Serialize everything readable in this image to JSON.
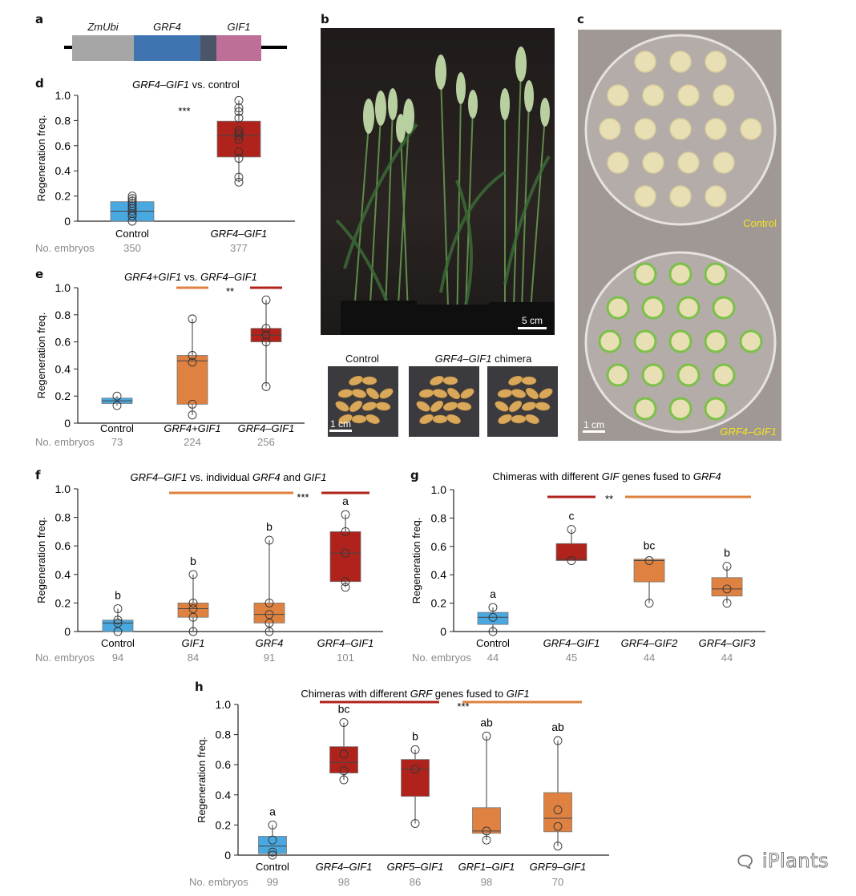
{
  "panels": {
    "a": {
      "letter": "a",
      "segments": [
        {
          "label": "ZmUbi",
          "color": "#a6a6a6"
        },
        {
          "label": "GRF4",
          "color": "#3f74b0"
        },
        {
          "label": "",
          "color": "#4a5568"
        },
        {
          "label": "GIF1",
          "color": "#bd6f98"
        }
      ]
    },
    "b": {
      "letter": "b",
      "scale_bar": "5 cm",
      "seed_labels": {
        "control": "Control",
        "chimera_gene": "GRF4–GIF1",
        "chimera_suffix": " chimera"
      },
      "seed_scale_bar": "1 cm"
    },
    "c": {
      "letter": "c",
      "control_label": "Control",
      "treatment_label": "GRF4–GIF1",
      "scale_bar": "1 cm",
      "label_color": "#f2e21c"
    },
    "watermark": "iPlants"
  },
  "colors": {
    "control": "#4aa8e0",
    "chimera": "#b0231c",
    "other": "#df8140"
  },
  "chart_data": [
    {
      "id": "d",
      "letter": "d",
      "type": "box",
      "title_parts": [
        {
          "t": "GRF4–GIF1",
          "i": true
        },
        {
          "t": " vs. control",
          "i": false
        }
      ],
      "ylabel": "Regeneration freq.",
      "ylim": [
        0,
        1.0
      ],
      "yticks": [
        "0",
        "0.2",
        "0.4",
        "0.6",
        "0.8",
        "1.0"
      ],
      "count_label": "No. embryos",
      "significance": "***",
      "groups": [
        {
          "name": "Control",
          "italic": false,
          "color": "control",
          "n": "350",
          "q1": 0.0,
          "median": 0.08,
          "q3": 0.155,
          "min": 0.0,
          "max": 0.2,
          "points": [
            0.0,
            0.04,
            0.06,
            0.08,
            0.1,
            0.12,
            0.14,
            0.16,
            0.18,
            0.2
          ]
        },
        {
          "name": "GRF4–GIF1",
          "italic": true,
          "color": "chimera",
          "n": "377",
          "q1": 0.51,
          "median": 0.68,
          "q3": 0.795,
          "min": 0.31,
          "max": 0.96,
          "points": [
            0.31,
            0.35,
            0.5,
            0.55,
            0.65,
            0.68,
            0.7,
            0.72,
            0.82,
            0.87,
            0.9,
            0.96
          ]
        }
      ],
      "bars": []
    },
    {
      "id": "e",
      "letter": "e",
      "type": "box",
      "title_parts": [
        {
          "t": "GRF4+GIF1",
          "i": true
        },
        {
          "t": " vs. ",
          "i": false
        },
        {
          "t": "GRF4–GIF1",
          "i": true
        }
      ],
      "ylabel": "Regeneration freq.",
      "ylim": [
        0,
        1.0
      ],
      "yticks": [
        "0",
        "0.2",
        "0.4",
        "0.6",
        "0.8",
        "1.0"
      ],
      "count_label": "No. embryos",
      "significance": "**",
      "groups": [
        {
          "name": "Control",
          "italic": false,
          "color": "control",
          "n": "73",
          "q1": 0.145,
          "median": 0.165,
          "q3": 0.185,
          "min": 0.13,
          "max": 0.2,
          "points": [
            0.13,
            0.2
          ]
        },
        {
          "name": "GRF4+GIF1",
          "italic": true,
          "color": "other",
          "n": "224",
          "q1": 0.14,
          "median": 0.46,
          "q3": 0.5,
          "min": 0.06,
          "max": 0.77,
          "points": [
            0.06,
            0.14,
            0.45,
            0.5,
            0.77
          ]
        },
        {
          "name": "GRF4–GIF1",
          "italic": true,
          "color": "chimera",
          "n": "256",
          "q1": 0.6,
          "median": 0.65,
          "q3": 0.7,
          "min": 0.27,
          "max": 0.91,
          "points": [
            0.27,
            0.6,
            0.65,
            0.7,
            0.91
          ]
        }
      ],
      "bars": [
        {
          "from": 1,
          "to": 1,
          "color": "other"
        },
        {
          "from": 2,
          "to": 2,
          "color": "chimera"
        }
      ]
    },
    {
      "id": "f",
      "letter": "f",
      "type": "box",
      "title_parts": [
        {
          "t": "GRF4–GIF1",
          "i": true
        },
        {
          "t": " vs. individual ",
          "i": false
        },
        {
          "t": "GRF4",
          "i": true
        },
        {
          "t": " and ",
          "i": false
        },
        {
          "t": "GIF1",
          "i": true
        }
      ],
      "ylabel": "Regeneration freq.",
      "ylim": [
        0,
        1.0
      ],
      "yticks": [
        "0",
        "0.2",
        "0.4",
        "0.6",
        "0.8",
        "1.0"
      ],
      "count_label": "No. embryos",
      "significance": "***",
      "groups": [
        {
          "name": "Control",
          "italic": false,
          "color": "control",
          "n": "94",
          "letter": "b",
          "q1": 0.0,
          "median": 0.06,
          "q3": 0.08,
          "min": 0.0,
          "max": 0.16,
          "points": [
            0.0,
            0.06,
            0.08,
            0.16
          ]
        },
        {
          "name": "GIF1",
          "italic": true,
          "color": "other",
          "n": "84",
          "letter": "b",
          "q1": 0.1,
          "median": 0.16,
          "q3": 0.2,
          "min": 0.0,
          "max": 0.4,
          "points": [
            0.0,
            0.1,
            0.16,
            0.2,
            0.4
          ]
        },
        {
          "name": "GRF4",
          "italic": true,
          "color": "other",
          "n": "91",
          "letter": "b",
          "q1": 0.06,
          "median": 0.12,
          "q3": 0.2,
          "min": 0.0,
          "max": 0.64,
          "points": [
            0.0,
            0.06,
            0.12,
            0.2,
            0.64
          ]
        },
        {
          "name": "GRF4–GIF1",
          "italic": true,
          "color": "chimera",
          "n": "101",
          "letter": "a",
          "q1": 0.35,
          "median": 0.55,
          "q3": 0.7,
          "min": 0.31,
          "max": 0.82,
          "points": [
            0.31,
            0.35,
            0.55,
            0.7,
            0.82
          ]
        }
      ],
      "bars": [
        {
          "from": 1,
          "to": 2,
          "color": "other"
        },
        {
          "from": 3,
          "to": 3,
          "color": "chimera"
        }
      ]
    },
    {
      "id": "g",
      "letter": "g",
      "type": "box",
      "title_parts": [
        {
          "t": "Chimeras with different ",
          "i": false
        },
        {
          "t": "GIF",
          "i": true
        },
        {
          "t": " genes fused to ",
          "i": false
        },
        {
          "t": "GRF4",
          "i": true
        }
      ],
      "ylabel": "Regeneration freq.",
      "ylim": [
        0,
        1.0
      ],
      "yticks": [
        "0",
        "0.2",
        "0.4",
        "0.6",
        "0.8",
        "1.0"
      ],
      "count_label": "No. embryos",
      "significance": "**",
      "groups": [
        {
          "name": "Control",
          "italic": false,
          "color": "control",
          "n": "44",
          "letter": "a",
          "q1": 0.05,
          "median": 0.1,
          "q3": 0.135,
          "min": 0.0,
          "max": 0.17,
          "points": [
            0.0,
            0.1,
            0.17
          ]
        },
        {
          "name": "GRF4–GIF1",
          "italic": true,
          "color": "chimera",
          "n": "45",
          "letter": "c",
          "q1": 0.5,
          "median": 0.51,
          "q3": 0.62,
          "min": 0.5,
          "max": 0.72,
          "points": [
            0.5,
            0.72
          ]
        },
        {
          "name": "GRF4–GIF2",
          "italic": true,
          "color": "other",
          "n": "44",
          "letter": "bc",
          "q1": 0.35,
          "median": 0.5,
          "q3": 0.51,
          "min": 0.2,
          "max": 0.51,
          "points": [
            0.2,
            0.5
          ]
        },
        {
          "name": "GRF4–GIF3",
          "italic": true,
          "color": "other",
          "n": "44",
          "letter": "b",
          "q1": 0.25,
          "median": 0.3,
          "q3": 0.38,
          "min": 0.2,
          "max": 0.46,
          "points": [
            0.2,
            0.3,
            0.46
          ]
        }
      ],
      "bars": [
        {
          "from": 1,
          "to": 1,
          "color": "chimera"
        },
        {
          "from": 2,
          "to": 3,
          "color": "other"
        }
      ]
    },
    {
      "id": "h",
      "letter": "h",
      "type": "box",
      "title_parts": [
        {
          "t": "Chimeras with different ",
          "i": false
        },
        {
          "t": "GRF",
          "i": true
        },
        {
          "t": " genes fused to ",
          "i": false
        },
        {
          "t": "GIF1",
          "i": true
        }
      ],
      "ylabel": "Regeneration freq.",
      "ylim": [
        0,
        1.0
      ],
      "yticks": [
        "0",
        "0.2",
        "0.4",
        "0.6",
        "0.8",
        "1.0"
      ],
      "count_label": "No. embryos",
      "significance": "***",
      "groups": [
        {
          "name": "Control",
          "italic": false,
          "color": "control",
          "n": "99",
          "letter": "a",
          "q1": 0.01,
          "median": 0.06,
          "q3": 0.125,
          "min": 0.0,
          "max": 0.2,
          "points": [
            0.0,
            0.02,
            0.1,
            0.2
          ]
        },
        {
          "name": "GRF4–GIF1",
          "italic": true,
          "color": "chimera",
          "n": "98",
          "letter": "bc",
          "q1": 0.545,
          "median": 0.615,
          "q3": 0.72,
          "min": 0.5,
          "max": 0.88,
          "points": [
            0.5,
            0.56,
            0.67,
            0.88
          ]
        },
        {
          "name": "GRF5–GIF1",
          "italic": true,
          "color": "chimera",
          "n": "86",
          "letter": "b",
          "q1": 0.39,
          "median": 0.57,
          "q3": 0.635,
          "min": 0.21,
          "max": 0.7,
          "points": [
            0.21,
            0.57,
            0.7
          ]
        },
        {
          "name": "GRF1–GIF1",
          "italic": true,
          "color": "other",
          "n": "98",
          "letter": "ab",
          "q1": 0.145,
          "median": 0.16,
          "q3": 0.315,
          "min": 0.1,
          "max": 0.79,
          "points": [
            0.1,
            0.16,
            0.79
          ]
        },
        {
          "name": "GRF9–GIF1",
          "italic": true,
          "color": "other",
          "n": "70",
          "letter": "ab",
          "q1": 0.155,
          "median": 0.245,
          "q3": 0.415,
          "min": 0.06,
          "max": 0.76,
          "points": [
            0.06,
            0.19,
            0.3,
            0.76
          ]
        }
      ],
      "bars": [
        {
          "from": 1,
          "to": 2,
          "color": "chimera"
        },
        {
          "from": 3,
          "to": 4,
          "color": "other"
        }
      ]
    }
  ]
}
